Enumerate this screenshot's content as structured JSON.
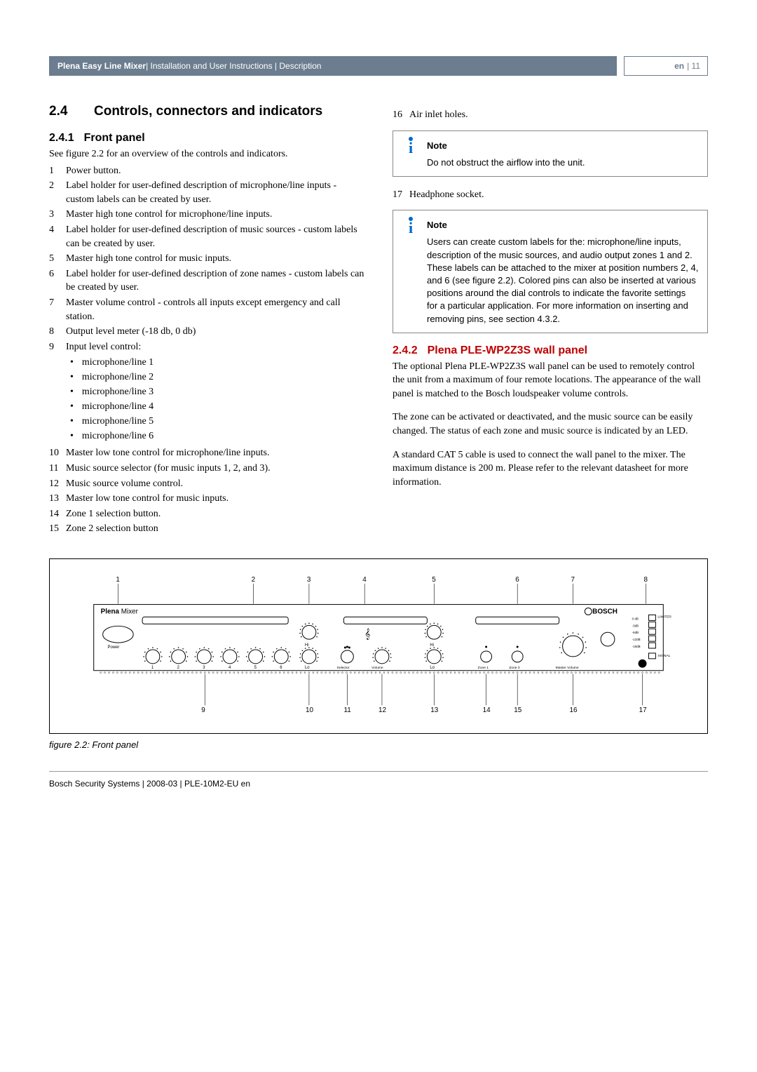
{
  "header": {
    "breadcrumb_bold": "Plena Easy Line Mixer",
    "breadcrumb_rest": " | Installation and User Instructions | Description",
    "lang_label": "en",
    "page_number": "| 11"
  },
  "leftCol": {
    "section_num": "2.4",
    "section_title": "Controls, connectors and indicators",
    "sub1_num": "2.4.1",
    "sub1_title": "Front panel",
    "sub1_intro": "See figure 2.2 for an overview of the controls and indicators.",
    "items": [
      {
        "n": "1",
        "t": "Power button."
      },
      {
        "n": "2",
        "t": "Label holder for user-defined description of microphone/line inputs - custom labels can be created by user."
      },
      {
        "n": "3",
        "t": "Master high tone control for microphone/line inputs."
      },
      {
        "n": "4",
        "t": "Label holder for user-defined description of music sources - custom labels can be created by user."
      },
      {
        "n": "5",
        "t": "Master high tone control for music inputs."
      },
      {
        "n": "6",
        "t": "Label holder for user-defined description of zone names - custom labels can be created by user."
      },
      {
        "n": "7",
        "t": "Master volume control - controls all inputs except emergency and call station."
      },
      {
        "n": "8",
        "t": "Output level meter (-18 db, 0 db)"
      },
      {
        "n": "9",
        "t": "Input level control:"
      }
    ],
    "bullets": [
      "microphone/line 1",
      "microphone/line 2",
      "microphone/line 3",
      "microphone/line 4",
      "microphone/line 5",
      "microphone/line 6"
    ],
    "items2": [
      {
        "n": "10",
        "t": "Master low tone control for microphone/line inputs."
      },
      {
        "n": "11",
        "t": "Music source selector (for music inputs 1, 2, and 3)."
      },
      {
        "n": "12",
        "t": "Music source volume control."
      },
      {
        "n": "13",
        "t": "Master low tone control for music inputs."
      },
      {
        "n": "14",
        "t": "Zone 1 selection button."
      },
      {
        "n": "15",
        "t": "Zone 2 selection button"
      }
    ]
  },
  "rightCol": {
    "item16": {
      "n": "16",
      "t": "Air inlet holes."
    },
    "note1_title": "Note",
    "note1_body": "Do not obstruct the airflow into the unit.",
    "item17": {
      "n": "17",
      "t": "Headphone socket."
    },
    "note2_title": "Note",
    "note2_body": "Users can create custom labels for the: microphone/line inputs, description of the music sources, and audio output zones 1 and 2. These labels can be attached to the mixer at position numbers 2, 4, and 6 (see figure 2.2). Colored pins can also be inserted at various positions around the dial controls to indicate the favorite settings for a particular application. For more information on inserting and removing pins, see section 4.3.2.",
    "sub2_num": "2.4.2",
    "sub2_title": "Plena PLE-WP2Z3S wall panel",
    "p1": "The optional Plena PLE-WP2Z3S wall panel can be used to remotely control the unit from a maximum of four remote locations. The appearance of the wall panel is matched to the Bosch loudspeaker volume controls.",
    "p2": "The zone can be activated or deactivated, and the music source can be easily changed. The status of each zone and music source is indicated by an LED.",
    "p3": "A standard CAT 5 cable is used to connect the wall panel to the mixer. The maximum distance is 200 m. Please refer to the relevant datasheet for more information."
  },
  "figure": {
    "caption": "figure 2.2: Front panel",
    "title_bold": "Plena",
    "title_rest": " Mixer",
    "brand": "BOSCH",
    "power_label": "Power",
    "hi_label": "Hi",
    "lo_label": "Lo",
    "selector_label": "Selector",
    "volume_label": "Volume",
    "zone1_label": "Zone 1",
    "zone2_label": "Zone 2",
    "master_label": "Master Volume",
    "limiter_label": "LIMITER",
    "signal_label": "SIGNAL",
    "meter_labels": [
      "0 dB",
      "-3dB",
      "-6dB",
      "-12dB",
      "-18dB"
    ],
    "top_callouts": [
      "1",
      "2",
      "3",
      "4",
      "5",
      "6",
      "7",
      "8"
    ],
    "bottom_callouts": [
      "9",
      "10",
      "11",
      "12",
      "13",
      "14",
      "15",
      "16",
      "17"
    ],
    "mic_numbers": [
      "1",
      "2",
      "3",
      "4",
      "5",
      "6"
    ]
  },
  "footer": "Bosch Security Systems | 2008-03 | PLE-10M2-EU en"
}
